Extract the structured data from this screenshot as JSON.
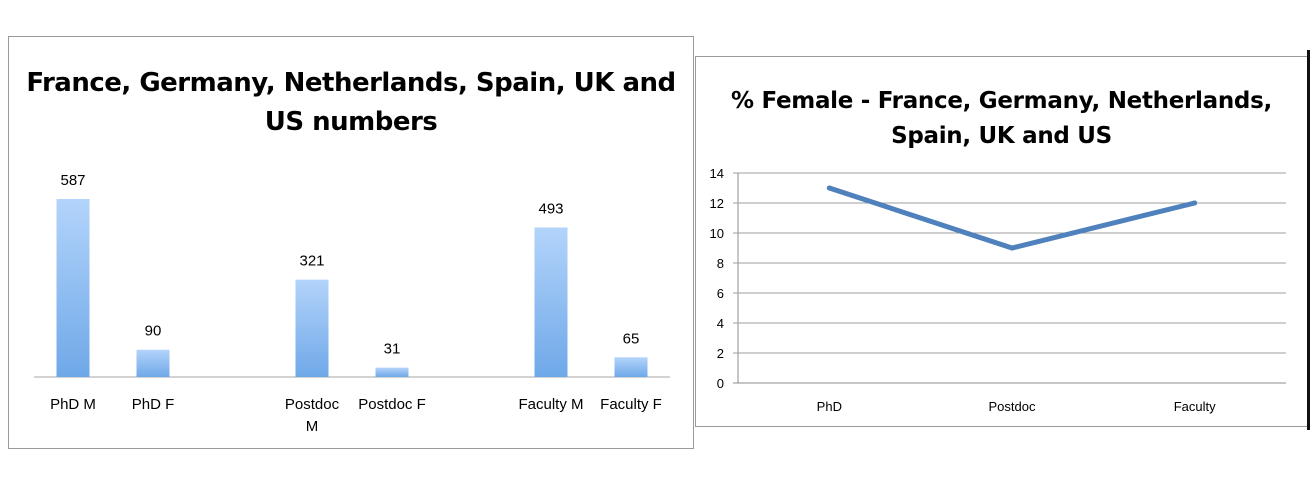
{
  "chart_data": [
    {
      "type": "bar",
      "title": "France, Germany, Netherlands, Spain, UK and US numbers",
      "categories": [
        "PhD M",
        "PhD F",
        "Postdoc M",
        "Postdoc F",
        "Faculty M",
        "Faculty F"
      ],
      "values": [
        587,
        90,
        321,
        31,
        493,
        65
      ],
      "ylim": [
        0,
        600
      ],
      "grid": false,
      "legend": "none",
      "bar_color": "#6fa8e8"
    },
    {
      "type": "line",
      "title": "% Female - France, Germany, Netherlands, Spain, UK and US",
      "categories": [
        "PhD",
        "Postdoc",
        "Faculty"
      ],
      "series": [
        {
          "values": [
            13,
            9,
            12
          ]
        }
      ],
      "ylim": [
        0,
        14
      ],
      "yticks": [
        0,
        2,
        4,
        6,
        8,
        10,
        12,
        14
      ],
      "grid": true,
      "legend": "none",
      "line_color": "#4f81bd"
    }
  ]
}
